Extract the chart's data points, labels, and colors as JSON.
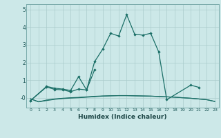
{
  "xlabel": "Humidex (Indice chaleur)",
  "bg_color": "#cce8e8",
  "grid_color": "#aacccc",
  "line_color": "#1a6e66",
  "x": [
    0,
    1,
    2,
    3,
    4,
    5,
    6,
    7,
    8,
    9,
    10,
    11,
    12,
    13,
    14,
    15,
    16,
    17,
    18,
    19,
    20,
    21,
    22,
    23
  ],
  "line1_x": [
    0,
    2,
    3,
    4,
    5,
    6,
    7,
    8,
    9,
    10,
    11,
    12,
    13,
    14,
    15,
    16,
    17,
    20,
    21
  ],
  "line1_y": [
    -0.15,
    0.65,
    0.55,
    0.5,
    0.42,
    1.2,
    0.45,
    2.05,
    2.75,
    3.65,
    3.5,
    4.7,
    3.6,
    3.55,
    3.65,
    2.6,
    -0.1,
    0.72,
    0.6
  ],
  "line2_x": [
    0,
    2,
    3,
    4,
    5,
    6,
    7,
    8
  ],
  "line2_y": [
    -0.15,
    0.62,
    0.48,
    0.46,
    0.35,
    0.5,
    0.45,
    1.6
  ],
  "line3_x": [
    0,
    1,
    2,
    3,
    4,
    5,
    6,
    7,
    8,
    9,
    10,
    11,
    12,
    13,
    14,
    15,
    16,
    17,
    18,
    19,
    20,
    21,
    22,
    23
  ],
  "line3_y": [
    -0.05,
    -0.22,
    -0.15,
    -0.08,
    -0.04,
    -0.01,
    0.01,
    0.04,
    0.07,
    0.1,
    0.12,
    0.13,
    0.13,
    0.12,
    0.11,
    0.1,
    0.08,
    0.06,
    0.04,
    0.01,
    -0.02,
    -0.06,
    -0.1,
    -0.2
  ],
  "line4_x": [
    0,
    1,
    2,
    3,
    4,
    5,
    6,
    7,
    8,
    9,
    10,
    11,
    12,
    13,
    14,
    15,
    16,
    17,
    18,
    19,
    20,
    21,
    22,
    23
  ],
  "line4_y": [
    -0.05,
    -0.22,
    -0.12,
    -0.06,
    -0.02,
    0.01,
    0.03,
    0.06,
    0.09,
    0.11,
    0.12,
    0.13,
    0.13,
    0.12,
    0.11,
    0.1,
    0.08,
    0.06,
    0.04,
    0.01,
    -0.02,
    -0.06,
    -0.1,
    -0.2
  ],
  "ylim": [
    -0.55,
    5.3
  ],
  "yticks": [
    0,
    1,
    2,
    3,
    4,
    5
  ],
  "ytick_labels": [
    "-0",
    "1",
    "2",
    "3",
    "4",
    "5"
  ],
  "xlim": [
    -0.5,
    23.5
  ]
}
